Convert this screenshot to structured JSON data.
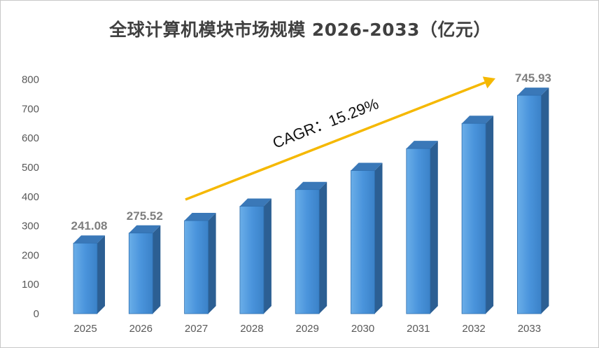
{
  "chart_data": {
    "type": "bar",
    "title": "全球计算机模块市场规模 2026-2033（亿元）",
    "categories": [
      "2025",
      "2026",
      "2027",
      "2028",
      "2029",
      "2030",
      "2031",
      "2032",
      "2033"
    ],
    "values": [
      241.08,
      275.52,
      318,
      367,
      424,
      489,
      564,
      650,
      745.93
    ],
    "data_labels": [
      {
        "category": "2025",
        "text": "241.08"
      },
      {
        "category": "2026",
        "text": "275.52"
      },
      {
        "category": "2033",
        "text": "745.93"
      }
    ],
    "y_ticks": [
      "0",
      "100",
      "200",
      "300",
      "400",
      "500",
      "600",
      "700",
      "800"
    ],
    "ylim": [
      0,
      800
    ],
    "xlabel": "",
    "ylabel": "",
    "grid": false,
    "legend": "none",
    "annotation": "CAGR：15.29%",
    "colors": {
      "bar_front": "#4a90d9",
      "bar_side": "#2c5f93",
      "bar_top": "#3a78b8",
      "arrow": "#f5b800"
    }
  }
}
